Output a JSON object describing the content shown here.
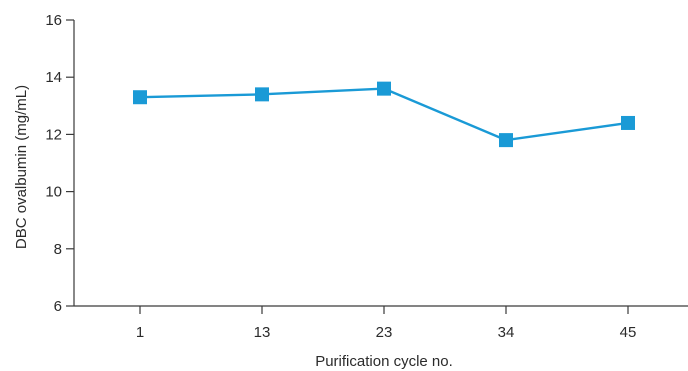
{
  "chart_data": {
    "type": "line",
    "title": "",
    "xlabel": "Purification cycle no.",
    "ylabel": "DBC ovalbumin (mg/mL)",
    "categories": [
      "1",
      "13",
      "23",
      "34",
      "45"
    ],
    "series": [
      {
        "values": [
          13.3,
          13.4,
          13.6,
          11.8,
          12.4
        ]
      }
    ],
    "ylim": [
      6,
      16
    ],
    "yticks": [
      6,
      8,
      10,
      12,
      14,
      16
    ],
    "grid": false,
    "legend": "none",
    "marker": "square",
    "colors": {
      "series": "#1a9ad6",
      "axis": "#3a3a3a",
      "text": "#2b2b2b"
    }
  }
}
